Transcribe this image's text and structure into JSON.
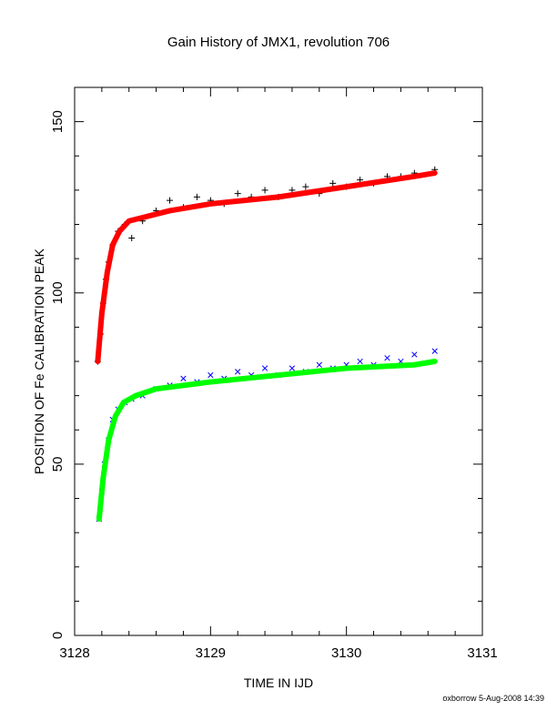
{
  "chart_data": {
    "type": "scatter",
    "title": "Gain History of JMX1, revolution 706",
    "xlabel": "TIME IN IJD",
    "ylabel": "POSITION OF Fe CALIBRATION PEAK",
    "xlim": [
      3128,
      3131
    ],
    "ylim": [
      0,
      160
    ],
    "x_ticks": [
      "3128",
      "3129",
      "3130",
      "3131"
    ],
    "y_ticks": [
      "0",
      "50",
      "100",
      "150"
    ],
    "grid": false,
    "legend": "none",
    "series": [
      {
        "marker": "plus",
        "color": "#000000",
        "x": [
          3128.17,
          3128.19,
          3128.21,
          3128.23,
          3128.25,
          3128.28,
          3128.32,
          3128.37,
          3128.42,
          3128.5,
          3128.6,
          3128.7,
          3128.8,
          3128.9,
          3129.0,
          3129.1,
          3129.2,
          3129.3,
          3129.4,
          3129.5,
          3129.6,
          3129.7,
          3129.8,
          3129.9,
          3130.0,
          3130.1,
          3130.2,
          3130.3,
          3130.4,
          3130.5,
          3130.65
        ],
        "y": [
          80,
          88,
          97,
          104,
          109,
          114,
          118,
          120,
          116,
          121,
          124,
          127,
          125,
          128,
          127,
          126,
          129,
          128,
          130,
          128,
          130,
          131,
          129,
          132,
          131,
          133,
          132,
          134,
          134,
          135,
          136
        ]
      },
      {
        "marker": "line",
        "color": "#ff0000",
        "x": [
          3128.17,
          3128.2,
          3128.24,
          3128.28,
          3128.33,
          3128.4,
          3128.5,
          3128.7,
          3129.0,
          3129.5,
          3130.0,
          3130.5,
          3130.65
        ],
        "y": [
          80,
          94,
          106,
          114,
          118,
          121,
          122,
          124,
          126,
          128,
          131,
          134,
          135
        ]
      },
      {
        "marker": "cross",
        "color": "#0000ff",
        "x": [
          3128.18,
          3128.2,
          3128.22,
          3128.25,
          3128.28,
          3128.32,
          3128.37,
          3128.42,
          3128.5,
          3128.6,
          3128.7,
          3128.8,
          3128.9,
          3129.0,
          3129.1,
          3129.2,
          3129.3,
          3129.4,
          3129.5,
          3129.6,
          3129.7,
          3129.8,
          3129.9,
          3130.0,
          3130.1,
          3130.2,
          3130.3,
          3130.4,
          3130.5,
          3130.65
        ],
        "y": [
          34,
          42,
          50,
          57,
          63,
          66,
          68,
          69,
          70,
          72,
          73,
          75,
          74,
          76,
          75,
          77,
          76,
          78,
          76,
          78,
          77,
          79,
          78,
          79,
          80,
          79,
          81,
          80,
          82,
          83
        ]
      },
      {
        "marker": "line",
        "color": "#00ff00",
        "x": [
          3128.18,
          3128.21,
          3128.25,
          3128.3,
          3128.36,
          3128.45,
          3128.6,
          3128.8,
          3129.0,
          3129.5,
          3130.0,
          3130.5,
          3130.65
        ],
        "y": [
          34,
          46,
          57,
          64,
          68,
          70,
          72,
          73,
          74,
          76,
          78,
          79,
          80
        ]
      }
    ]
  },
  "footer": "oxborrow 5-Aug-2008 14:39"
}
